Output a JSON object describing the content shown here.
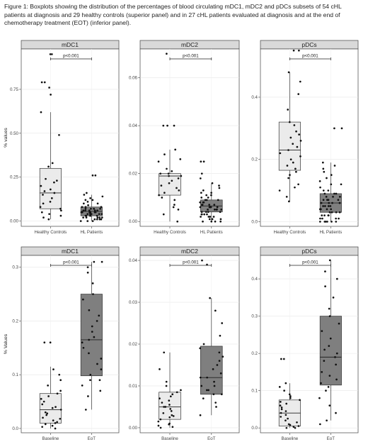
{
  "caption": "Figure 1: Boxplots showing the distribution of the percentages of blood circulating mDC1, mDC2 and pDCs subsets of 54 cHL patients at diagnosis and 29 healthy controls (superior panel) and in 27 cHL patients evaluated at diagnosis and at the end of chemotherapy treatment (EOT) (inferior panel).",
  "chart_data": [
    {
      "type": "box",
      "title": "mDC1",
      "ylabel": "% values",
      "ylim": [
        -0.03,
        0.98
      ],
      "yticks": [
        0.0,
        0.25,
        0.5,
        0.75
      ],
      "ytick_labels": [
        "0.00",
        "0.25",
        "0.50",
        "0.75"
      ],
      "categories": [
        "Healthy Controls",
        "HL Patients"
      ],
      "significance": "p<0.001",
      "box_colors": [
        "#ebebeb",
        "#7f7f7f"
      ],
      "boxes": [
        {
          "min": 0.01,
          "q1": 0.07,
          "median": 0.16,
          "q3": 0.3,
          "max": 0.62
        },
        {
          "min": 0.0,
          "q1": 0.03,
          "median": 0.055,
          "q3": 0.08,
          "max": 0.15
        }
      ],
      "points": [
        [
          0.95,
          0.95,
          0.79,
          0.79,
          0.76,
          0.72,
          0.62,
          0.49,
          0.33,
          0.31,
          0.24,
          0.23,
          0.22,
          0.2,
          0.18,
          0.17,
          0.16,
          0.15,
          0.13,
          0.11,
          0.1,
          0.08,
          0.07,
          0.06,
          0.05,
          0.04,
          0.03,
          0.02,
          0.01
        ],
        [
          0.26,
          0.26,
          0.16,
          0.15,
          0.14,
          0.13,
          0.12,
          0.12,
          0.11,
          0.1,
          0.1,
          0.09,
          0.09,
          0.08,
          0.08,
          0.08,
          0.07,
          0.07,
          0.07,
          0.07,
          0.06,
          0.06,
          0.06,
          0.06,
          0.06,
          0.05,
          0.05,
          0.05,
          0.05,
          0.05,
          0.05,
          0.04,
          0.04,
          0.04,
          0.04,
          0.04,
          0.04,
          0.03,
          0.03,
          0.03,
          0.03,
          0.03,
          0.02,
          0.02,
          0.02,
          0.02,
          0.02,
          0.01,
          0.01,
          0.01,
          0.01,
          0.0,
          0.0,
          0.0
        ]
      ]
    },
    {
      "type": "box",
      "title": "mDC2",
      "ylabel": "",
      "ylim": [
        -0.002,
        0.072
      ],
      "yticks": [
        0.0,
        0.02,
        0.04,
        0.06
      ],
      "ytick_labels": [
        "0.00",
        "0.02",
        "0.04",
        "0.06"
      ],
      "categories": [
        "Healthy Controls",
        "HL Patients"
      ],
      "significance": "p<0.001",
      "box_colors": [
        "#ebebeb",
        "#7f7f7f"
      ],
      "boxes": [
        {
          "min": 0.0,
          "q1": 0.011,
          "median": 0.019,
          "q3": 0.02,
          "max": 0.03
        },
        {
          "min": 0.0,
          "q1": 0.004,
          "median": 0.0065,
          "q3": 0.009,
          "max": 0.016
        }
      ],
      "points": [
        [
          0.07,
          0.04,
          0.04,
          0.04,
          0.03,
          0.028,
          0.026,
          0.025,
          0.022,
          0.021,
          0.02,
          0.02,
          0.019,
          0.019,
          0.018,
          0.017,
          0.016,
          0.015,
          0.014,
          0.013,
          0.012,
          0.011,
          0.01,
          0.009,
          0.007,
          0.006,
          0.005,
          0.003,
          0.0
        ],
        [
          0.025,
          0.025,
          0.02,
          0.018,
          0.016,
          0.015,
          0.014,
          0.013,
          0.012,
          0.012,
          0.011,
          0.011,
          0.01,
          0.01,
          0.009,
          0.009,
          0.009,
          0.008,
          0.008,
          0.008,
          0.007,
          0.007,
          0.007,
          0.007,
          0.006,
          0.006,
          0.006,
          0.006,
          0.006,
          0.005,
          0.005,
          0.005,
          0.005,
          0.005,
          0.004,
          0.004,
          0.004,
          0.004,
          0.003,
          0.003,
          0.003,
          0.003,
          0.002,
          0.002,
          0.002,
          0.002,
          0.001,
          0.001,
          0.001,
          0.001,
          0.0,
          0.0,
          0.0,
          0.0
        ]
      ]
    },
    {
      "type": "box",
      "title": "pDCs",
      "ylabel": "",
      "ylim": [
        -0.015,
        0.555
      ],
      "yticks": [
        0.0,
        0.2,
        0.4
      ],
      "ytick_labels": [
        "0.0",
        "0.2",
        "0.4"
      ],
      "categories": [
        "Healthy Controls",
        "HL Patients"
      ],
      "significance": "p<0.001",
      "box_colors": [
        "#ebebeb",
        "#7f7f7f"
      ],
      "boxes": [
        {
          "min": 0.065,
          "q1": 0.165,
          "median": 0.23,
          "q3": 0.32,
          "max": 0.48
        },
        {
          "min": 0.0,
          "q1": 0.03,
          "median": 0.06,
          "q3": 0.09,
          "max": 0.19
        }
      ],
      "points": [
        [
          0.55,
          0.55,
          0.48,
          0.45,
          0.41,
          0.36,
          0.32,
          0.31,
          0.29,
          0.28,
          0.27,
          0.26,
          0.25,
          0.24,
          0.23,
          0.22,
          0.21,
          0.2,
          0.19,
          0.18,
          0.17,
          0.16,
          0.15,
          0.14,
          0.12,
          0.11,
          0.1,
          0.08,
          0.065
        ],
        [
          0.3,
          0.3,
          0.19,
          0.18,
          0.17,
          0.16,
          0.15,
          0.14,
          0.13,
          0.12,
          0.12,
          0.11,
          0.1,
          0.1,
          0.09,
          0.09,
          0.09,
          0.08,
          0.08,
          0.08,
          0.07,
          0.07,
          0.07,
          0.07,
          0.06,
          0.06,
          0.06,
          0.06,
          0.05,
          0.05,
          0.05,
          0.05,
          0.04,
          0.04,
          0.04,
          0.04,
          0.03,
          0.03,
          0.03,
          0.03,
          0.02,
          0.02,
          0.02,
          0.02,
          0.01,
          0.01,
          0.01,
          0.01,
          0.0,
          0.0,
          0.0,
          0.0,
          0.0,
          0.0
        ]
      ]
    },
    {
      "type": "box",
      "title": "mDC1",
      "ylabel": "% Values",
      "ylim": [
        -0.008,
        0.322
      ],
      "yticks": [
        0.0,
        0.1,
        0.2,
        0.3
      ],
      "ytick_labels": [
        "0.0",
        "0.1",
        "0.2",
        "0.3"
      ],
      "categories": [
        "Baseline",
        "EoT"
      ],
      "significance": "p<0.001",
      "box_colors": [
        "#ebebeb",
        "#7f7f7f"
      ],
      "boxes": [
        {
          "min": 0.0,
          "q1": 0.01,
          "median": 0.035,
          "q3": 0.065,
          "max": 0.115
        },
        {
          "min": 0.035,
          "q1": 0.098,
          "median": 0.165,
          "q3": 0.25,
          "max": 0.31
        }
      ],
      "points": [
        [
          0.16,
          0.16,
          0.11,
          0.1,
          0.09,
          0.08,
          0.07,
          0.065,
          0.06,
          0.055,
          0.05,
          0.045,
          0.04,
          0.038,
          0.035,
          0.03,
          0.028,
          0.025,
          0.02,
          0.018,
          0.015,
          0.012,
          0.01,
          0.008,
          0.005,
          0.003,
          0.0
        ],
        [
          0.31,
          0.31,
          0.3,
          0.29,
          0.27,
          0.25,
          0.24,
          0.22,
          0.21,
          0.2,
          0.19,
          0.18,
          0.17,
          0.165,
          0.16,
          0.15,
          0.14,
          0.13,
          0.12,
          0.11,
          0.1,
          0.09,
          0.09,
          0.08,
          0.07,
          0.06,
          0.035
        ]
      ]
    },
    {
      "type": "box",
      "title": "mDC2",
      "ylabel": "",
      "ylim": [
        -0.0012,
        0.0412
      ],
      "yticks": [
        0.0,
        0.01,
        0.02,
        0.03,
        0.04
      ],
      "ytick_labels": [
        "0.00",
        "0.01",
        "0.02",
        "0.03",
        "0.04"
      ],
      "categories": [
        "Baseline",
        "EoT"
      ],
      "significance": "p<0.001",
      "box_colors": [
        "#ebebeb",
        "#7f7f7f"
      ],
      "boxes": [
        {
          "min": 0.0,
          "q1": 0.002,
          "median": 0.005,
          "q3": 0.0085,
          "max": 0.018
        },
        {
          "min": 0.003,
          "q1": 0.008,
          "median": 0.012,
          "q3": 0.0195,
          "max": 0.031
        }
      ],
      "points": [
        [
          0.018,
          0.014,
          0.011,
          0.01,
          0.009,
          0.0085,
          0.008,
          0.0075,
          0.007,
          0.0065,
          0.006,
          0.0055,
          0.005,
          0.005,
          0.0045,
          0.004,
          0.0035,
          0.003,
          0.0028,
          0.0025,
          0.002,
          0.0015,
          0.001,
          0.0008,
          0.0005,
          0.0002,
          0.0
        ],
        [
          0.04,
          0.039,
          0.031,
          0.028,
          0.025,
          0.022,
          0.02,
          0.019,
          0.018,
          0.017,
          0.016,
          0.015,
          0.014,
          0.013,
          0.012,
          0.012,
          0.011,
          0.01,
          0.01,
          0.009,
          0.009,
          0.008,
          0.008,
          0.007,
          0.006,
          0.005,
          0.003
        ]
      ]
    },
    {
      "type": "box",
      "title": "pDCs",
      "ylabel": "",
      "ylim": [
        -0.013,
        0.463
      ],
      "yticks": [
        0.0,
        0.1,
        0.2,
        0.3,
        0.4
      ],
      "ytick_labels": [
        "0.0",
        "0.1",
        "0.2",
        "0.3",
        "0.4"
      ],
      "categories": [
        "Baseline",
        "EoT"
      ],
      "significance": "p<0.001",
      "box_colors": [
        "#ebebeb",
        "#7f7f7f"
      ],
      "boxes": [
        {
          "min": 0.0,
          "q1": 0.005,
          "median": 0.04,
          "q3": 0.075,
          "max": 0.12
        },
        {
          "min": 0.02,
          "q1": 0.115,
          "median": 0.19,
          "q3": 0.3,
          "max": 0.45
        }
      ],
      "points": [
        [
          0.185,
          0.185,
          0.12,
          0.11,
          0.1,
          0.09,
          0.085,
          0.08,
          0.075,
          0.07,
          0.065,
          0.06,
          0.055,
          0.05,
          0.045,
          0.04,
          0.035,
          0.03,
          0.025,
          0.02,
          0.015,
          0.01,
          0.008,
          0.005,
          0.003,
          0.0,
          0.0
        ],
        [
          0.45,
          0.42,
          0.4,
          0.38,
          0.35,
          0.32,
          0.3,
          0.28,
          0.26,
          0.24,
          0.22,
          0.21,
          0.2,
          0.19,
          0.18,
          0.17,
          0.15,
          0.14,
          0.13,
          0.12,
          0.11,
          0.1,
          0.08,
          0.06,
          0.04,
          0.02,
          0.01
        ]
      ]
    }
  ]
}
